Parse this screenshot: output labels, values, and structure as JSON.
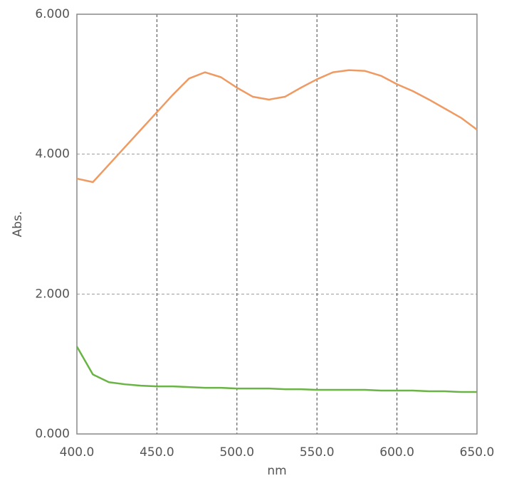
{
  "chart_data": {
    "type": "line",
    "x_label": "nm",
    "y_label": "Abs.",
    "x": [
      400,
      410,
      420,
      430,
      440,
      450,
      460,
      470,
      480,
      490,
      500,
      510,
      520,
      530,
      540,
      550,
      560,
      570,
      580,
      590,
      600,
      610,
      620,
      630,
      640,
      650
    ],
    "series": [
      {
        "color": "#ee9a62",
        "values": [
          3.65,
          3.6,
          3.85,
          4.1,
          4.35,
          4.6,
          4.85,
          5.08,
          5.17,
          5.1,
          4.95,
          4.82,
          4.78,
          4.82,
          4.95,
          5.07,
          5.17,
          5.2,
          5.19,
          5.12,
          5.0,
          4.9,
          4.78,
          4.65,
          4.52,
          4.35
        ]
      },
      {
        "color": "#6ab445",
        "values": [
          1.25,
          0.85,
          0.74,
          0.71,
          0.69,
          0.68,
          0.68,
          0.67,
          0.66,
          0.66,
          0.65,
          0.65,
          0.65,
          0.64,
          0.64,
          0.63,
          0.63,
          0.63,
          0.63,
          0.62,
          0.62,
          0.62,
          0.61,
          0.61,
          0.6,
          0.6
        ]
      }
    ],
    "xlim": [
      400,
      650
    ],
    "ylim": [
      0,
      6
    ],
    "xticks": [
      {
        "value": 400,
        "label": "400.0"
      },
      {
        "value": 450,
        "label": "450.0"
      },
      {
        "value": 500,
        "label": "500.0"
      },
      {
        "value": 550,
        "label": "550.0"
      },
      {
        "value": 600,
        "label": "600.0"
      },
      {
        "value": 650,
        "label": "650.0"
      }
    ],
    "yticks": [
      {
        "value": 0,
        "label": "0.000"
      },
      {
        "value": 2,
        "label": "2.000"
      },
      {
        "value": 4,
        "label": "4.000"
      },
      {
        "value": 6,
        "label": "6.000"
      }
    ],
    "grid": true
  }
}
